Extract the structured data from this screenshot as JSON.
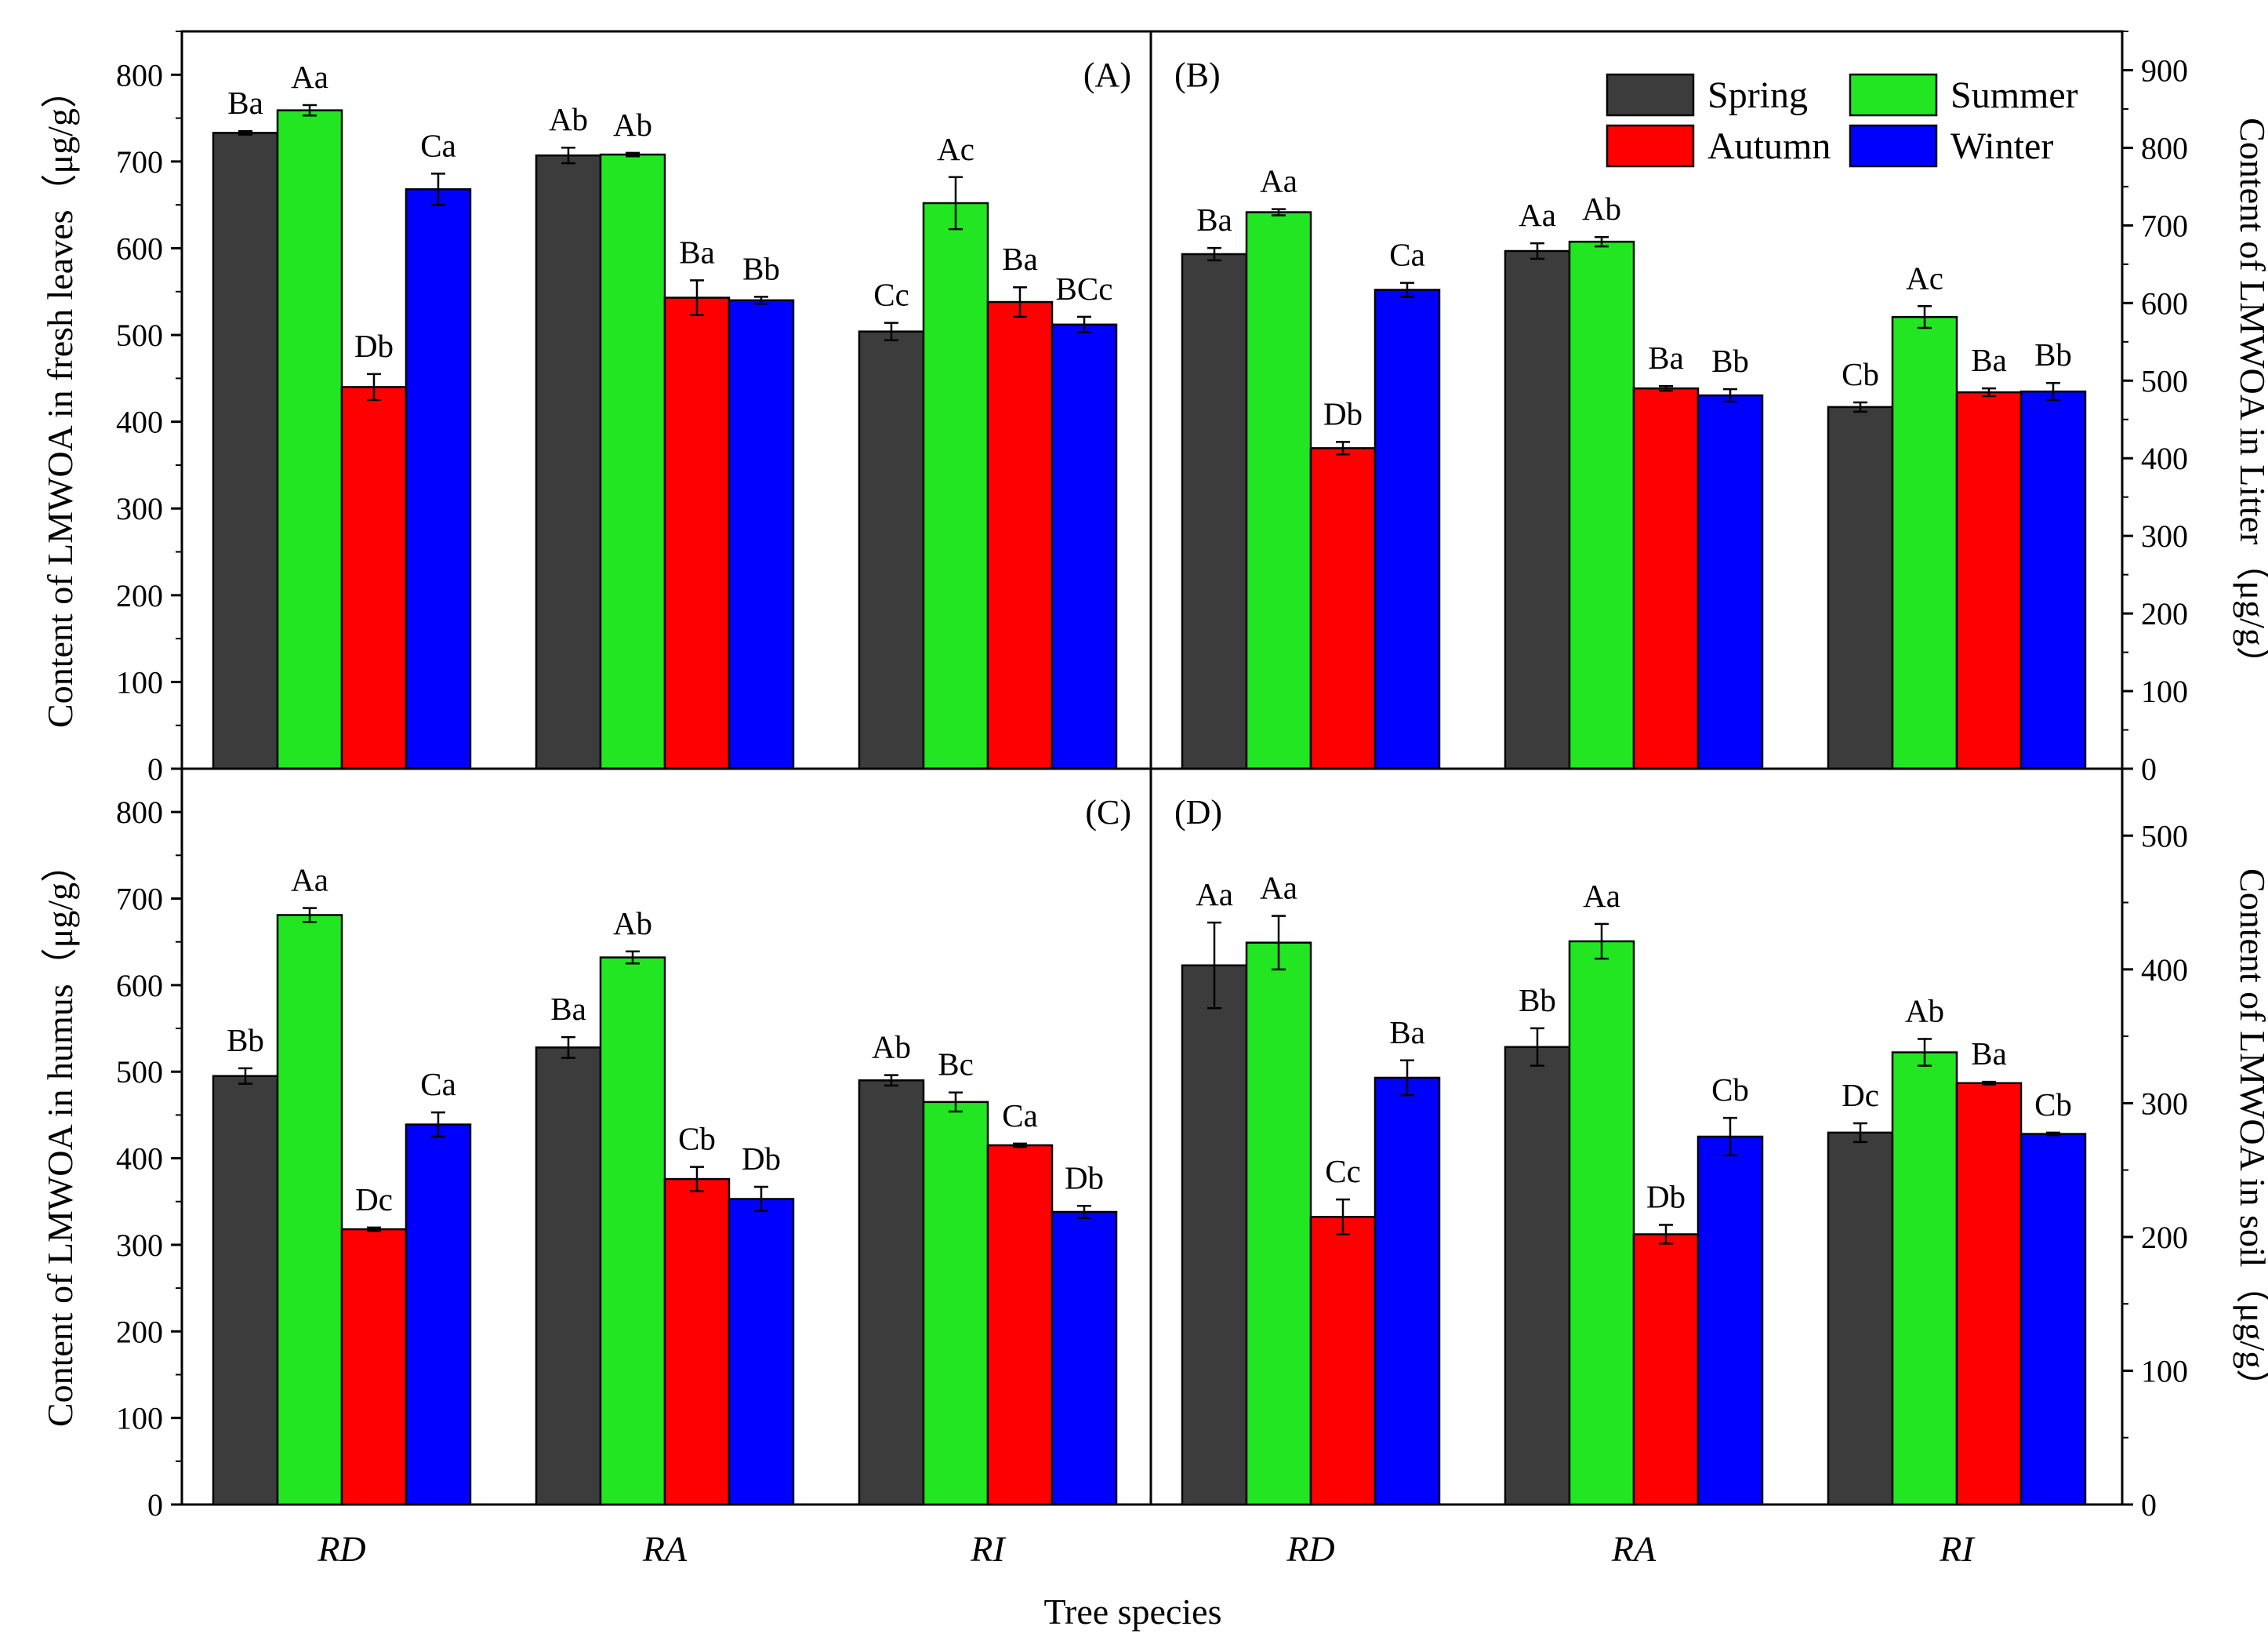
{
  "colors": {
    "Spring": "#3c3c3c",
    "Summer": "#22e622",
    "Autumn": "#ff0000",
    "Winter": "#0000ff"
  },
  "legend": [
    "Spring",
    "Summer",
    "Autumn",
    "Winter"
  ],
  "xlabel": "Tree species",
  "chart_data": [
    {
      "type": "bar",
      "panel": "(A)",
      "side": "left",
      "ylabel": "Content of LMWOA in fresh leaves（μg/g）",
      "ylim": [
        0,
        850
      ],
      "yticks": [
        0,
        100,
        200,
        300,
        400,
        500,
        600,
        700,
        800
      ],
      "categories": [
        "RD",
        "RA",
        "RI"
      ],
      "series": [
        {
          "name": "Spring",
          "values": [
            733,
            707,
            504
          ],
          "errors": [
            2,
            9,
            10
          ],
          "labels": [
            "Ba",
            "Ab",
            "Cc"
          ]
        },
        {
          "name": "Summer",
          "values": [
            759,
            708,
            652
          ],
          "errors": [
            6,
            2,
            30
          ],
          "labels": [
            "Aa",
            "Ab",
            "Ac"
          ]
        },
        {
          "name": "Autumn",
          "values": [
            440,
            543,
            538
          ],
          "errors": [
            15,
            20,
            17
          ],
          "labels": [
            "Db",
            "Ba",
            "Ba"
          ]
        },
        {
          "name": "Winter",
          "values": [
            668,
            540,
            512
          ],
          "errors": [
            18,
            4,
            9
          ],
          "labels": [
            "Ca",
            "Bb",
            "BCc"
          ]
        }
      ]
    },
    {
      "type": "bar",
      "panel": "(B)",
      "side": "right",
      "ylabel": "Content of LMWOA in Litter（μg/g）",
      "ylim": [
        0,
        950
      ],
      "yticks": [
        0,
        100,
        200,
        300,
        400,
        500,
        600,
        700,
        800,
        900
      ],
      "categories": [
        "RD",
        "RA",
        "RI"
      ],
      "series": [
        {
          "name": "Spring",
          "values": [
            663,
            667,
            466
          ],
          "errors": [
            8,
            10,
            6
          ],
          "labels": [
            "Ba",
            "Aa",
            "Cb"
          ]
        },
        {
          "name": "Summer",
          "values": [
            717,
            679,
            582
          ],
          "errors": [
            4,
            6,
            14
          ],
          "labels": [
            "Aa",
            "Ab",
            "Ac"
          ]
        },
        {
          "name": "Autumn",
          "values": [
            413,
            490,
            485
          ],
          "errors": [
            8,
            3,
            5
          ],
          "labels": [
            "Db",
            "Ba",
            "Ba"
          ]
        },
        {
          "name": "Winter",
          "values": [
            617,
            481,
            486
          ],
          "errors": [
            9,
            8,
            11
          ],
          "labels": [
            "Ca",
            "Bb",
            "Bb"
          ]
        }
      ]
    },
    {
      "type": "bar",
      "panel": "(C)",
      "side": "left",
      "ylabel": "Content of LMWOA in humus（μg/g）",
      "ylim": [
        0,
        850
      ],
      "yticks": [
        0,
        100,
        200,
        300,
        400,
        500,
        600,
        700,
        800
      ],
      "categories": [
        "RD",
        "RA",
        "RI"
      ],
      "series": [
        {
          "name": "Spring",
          "values": [
            495,
            528,
            490
          ],
          "errors": [
            9,
            12,
            6
          ],
          "labels": [
            "Bb",
            "Ba",
            "Ab"
          ]
        },
        {
          "name": "Summer",
          "values": [
            681,
            632,
            465
          ],
          "errors": [
            8,
            7,
            11
          ],
          "labels": [
            "Aa",
            "Ab",
            "Bc"
          ]
        },
        {
          "name": "Autumn",
          "values": [
            318,
            376,
            415
          ],
          "errors": [
            2,
            14,
            2
          ],
          "labels": [
            "Dc",
            "Cb",
            "Ca"
          ]
        },
        {
          "name": "Winter",
          "values": [
            439,
            353,
            338
          ],
          "errors": [
            14,
            14,
            7
          ],
          "labels": [
            "Ca",
            "Db",
            "Db"
          ]
        }
      ]
    },
    {
      "type": "bar",
      "panel": "(D)",
      "side": "right",
      "ylabel": "Content of LMWOA in soil（μg/g）",
      "ylim": [
        0,
        550
      ],
      "yticks": [
        0,
        100,
        200,
        300,
        400,
        500
      ],
      "categories": [
        "RD",
        "RA",
        "RI"
      ],
      "series": [
        {
          "name": "Spring",
          "values": [
            403,
            342,
            278
          ],
          "errors": [
            32,
            14,
            7
          ],
          "labels": [
            "Aa",
            "Bb",
            "Dc"
          ]
        },
        {
          "name": "Summer",
          "values": [
            420,
            421,
            338
          ],
          "errors": [
            20,
            13,
            10
          ],
          "labels": [
            "Aa",
            "Aa",
            "Ab"
          ]
        },
        {
          "name": "Autumn",
          "values": [
            215,
            202,
            315
          ],
          "errors": [
            13,
            7,
            1
          ],
          "labels": [
            "Cc",
            "Db",
            "Ba"
          ]
        },
        {
          "name": "Winter",
          "values": [
            319,
            275,
            277
          ],
          "errors": [
            13,
            14,
            1
          ],
          "labels": [
            "Ba",
            "Cb",
            "Cb"
          ]
        }
      ]
    }
  ]
}
